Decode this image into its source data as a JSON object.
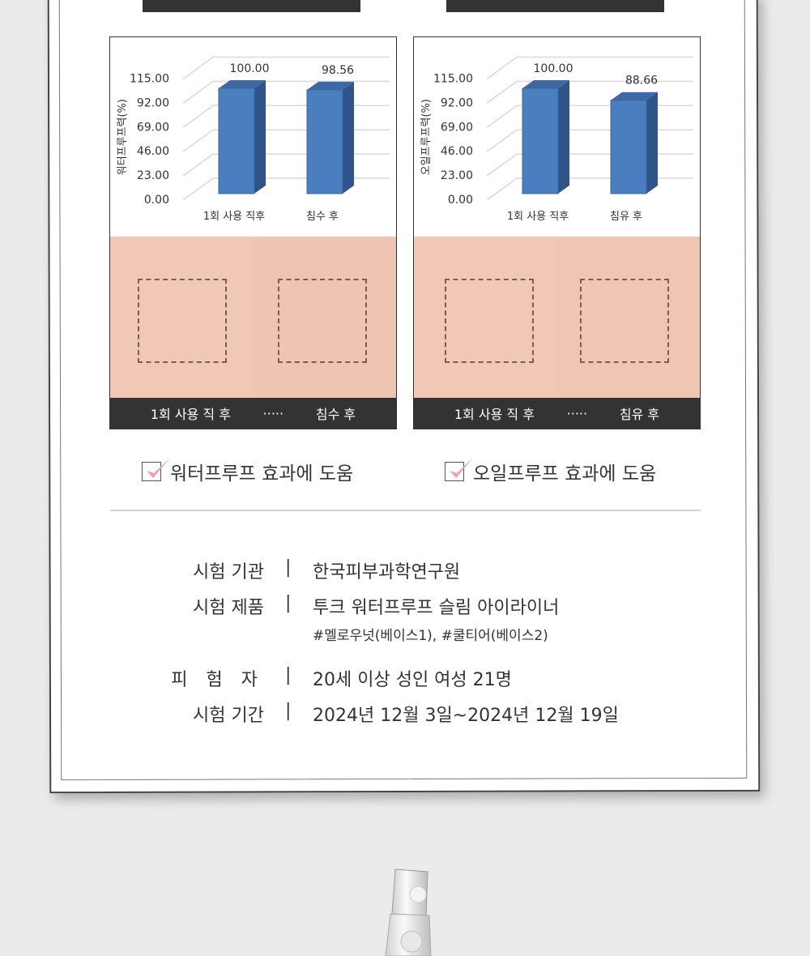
{
  "colors": {
    "bar_front": "#4a7ebf",
    "bar_side": "#2f5488",
    "bar_top": "#3c68a3",
    "label_bar": "#333333",
    "check_mark": "#f0a0a8",
    "skin": "#f2c9b7"
  },
  "chart_data": [
    {
      "type": "bar",
      "ylabel": "워터프루프력(%)",
      "categories": [
        "1회 사용 직후",
        "침수 후"
      ],
      "values": [
        100.0,
        98.56
      ],
      "value_labels": [
        "100.00",
        "98.56"
      ],
      "ylim": [
        0,
        115
      ],
      "yticks": [
        "0.00",
        "23.00",
        "46.00",
        "69.00",
        "92.00",
        "115.00"
      ],
      "grid": true,
      "style": "3d-column"
    },
    {
      "type": "bar",
      "ylabel": "오일프루프력(%)",
      "categories": [
        "1회 사용 직후",
        "침유 후"
      ],
      "values": [
        100.0,
        88.66
      ],
      "value_labels": [
        "100.00",
        "88.66"
      ],
      "ylim": [
        0,
        115
      ],
      "yticks": [
        "0.00",
        "23.00",
        "46.00",
        "69.00",
        "92.00",
        "115.00"
      ],
      "grid": true,
      "style": "3d-column"
    }
  ],
  "panels": [
    {
      "caption_before": "1회 사용 직 후",
      "dots": "·····",
      "caption_after": "침수 후",
      "check_text": "워터프루프 효과에 도움",
      "swatch_before": "#b68b78",
      "swatch_after": "#b48a76"
    },
    {
      "caption_before": "1회 사용 직 후",
      "dots": "·····",
      "caption_after": "침유 후",
      "check_text": "오일프루프 효과에 도움",
      "swatch_before": "#c77b6c",
      "swatch_after": "#c98476"
    }
  ],
  "info": {
    "rows": [
      {
        "label": "시험 기관",
        "sep": "|",
        "value": "한국피부과학연구원"
      },
      {
        "label": "시험 제품",
        "sep": "|",
        "value": "투크 워터프루프 슬림 아이라이너",
        "sub": "#멜로우넛(베이스1), #쿨티어(베이스2)"
      },
      {
        "label": "피 험 자",
        "sep": "|",
        "value": "20세 이상 성인 여성 21명"
      },
      {
        "label": "시험 기간",
        "sep": "|",
        "value": "2024년 12월 3일~2024년 12월 19일"
      }
    ]
  }
}
